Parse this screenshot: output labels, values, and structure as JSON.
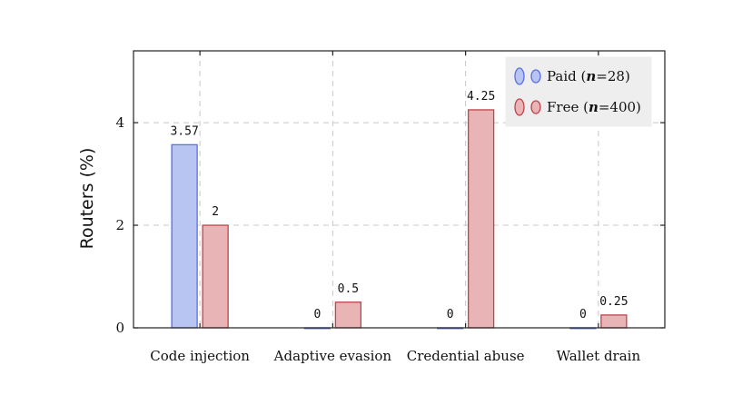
{
  "chart_data": {
    "type": "bar",
    "categories": [
      "Code injection",
      "Adaptive evasion",
      "Credential abuse",
      "Wallet drain"
    ],
    "series": [
      {
        "name": "Paid (n=28)",
        "legend_prefix": "Paid (",
        "legend_n": "n",
        "legend_suffix": "=28)",
        "values": [
          3.57,
          0,
          0,
          0
        ],
        "labels": [
          "3.57",
          "0",
          "0",
          "0"
        ],
        "fill": "#b8c4f2",
        "stroke": "#5a6fe0"
      },
      {
        "name": "Free (n=400)",
        "legend_prefix": "Free (",
        "legend_n": "n",
        "legend_suffix": "=400)",
        "values": [
          2,
          0.5,
          4.25,
          0.25
        ],
        "labels": [
          "2",
          "0.5",
          "4.25",
          "0.25"
        ],
        "fill": "#e8b4b6",
        "stroke": "#c0444a"
      }
    ],
    "title": "",
    "xlabel": "",
    "ylabel": "Routers (%)",
    "ylim": [
      0,
      5.4
    ],
    "yticks": [
      0,
      2,
      4
    ],
    "ytick_labels": [
      "0",
      "2",
      "4"
    ],
    "grid": true,
    "legend_position": "top-right"
  }
}
